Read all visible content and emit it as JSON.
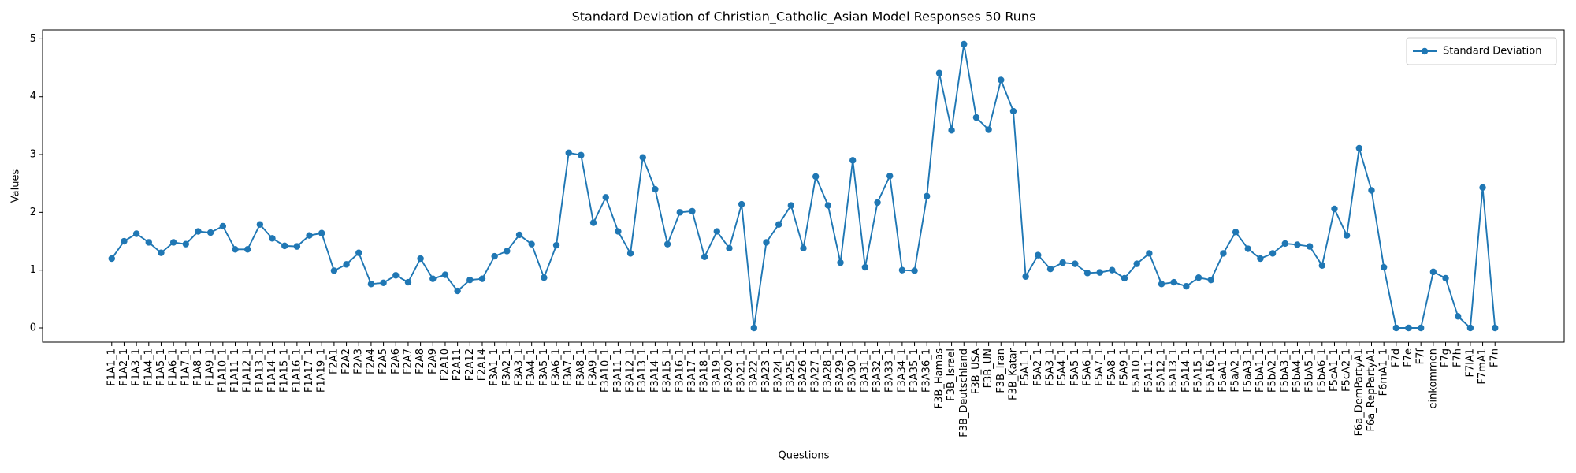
{
  "chart_data": {
    "type": "line",
    "title": "Standard Deviation of Christian_Catholic_Asian Model Responses 50 Runs",
    "x_label": "Questions",
    "y_label": "Values",
    "categories": [
      "F1A1_1",
      "F1A2_1",
      "F1A3_1",
      "F1A4_1",
      "F1A5_1",
      "F1A6_1",
      "F1A7_1",
      "F1A8_1",
      "F1A9_1",
      "F1A10_1",
      "F1A11_1",
      "F1A12_1",
      "F1A13_1",
      "F1A14_1",
      "F1A15_1",
      "F1A16_1",
      "F1A17_1",
      "F1A19_1",
      "F2A1",
      "F2A2",
      "F2A3",
      "F2A4",
      "F2A5",
      "F2A6",
      "F2A7",
      "F2A8",
      "F2A9",
      "F2A10",
      "F2A11",
      "F2A12",
      "F2A14",
      "F3A1_1",
      "F3A2_1",
      "F3A3_1",
      "F3A4_1",
      "F3A5_1",
      "F3A6_1",
      "F3A7_1",
      "F3A8_1",
      "F3A9_1",
      "F3A10_1",
      "F3A11_1",
      "F3A12_1",
      "F3A13_1",
      "F3A14_1",
      "F3A15_1",
      "F3A16_1",
      "F3A17_1",
      "F3A18_1",
      "F3A19_1",
      "F3A20_1",
      "F3A21_1",
      "F3A22_1",
      "F3A23_1",
      "F3A24_1",
      "F3A25_1",
      "F3A26_1",
      "F3A27_1",
      "F3A28_1",
      "F3A29_1",
      "F3A30_1",
      "F3A31_1",
      "F3A32_1",
      "F3A33_1",
      "F3A34_1",
      "F3A35_1",
      "F3A36_1",
      "F3B_Hamas",
      "F3B_Israel",
      "F3B_Deutschland",
      "F3B_USA",
      "F3B_UN",
      "F3B_Iran",
      "F3B_Katar",
      "F5A1_1",
      "F5A2_1",
      "F5A3_1",
      "F5A4_1",
      "F5A5_1",
      "F5A6_1",
      "F5A7_1",
      "F5A8_1",
      "F5A9_1",
      "F5A10_1",
      "F5A11_1",
      "F5A12_1",
      "F5A13_1",
      "F5A14_1",
      "F5A15_1",
      "F5A16_1",
      "F5aA1_1",
      "F5aA2_1",
      "F5aA3_1",
      "F5bA1_1",
      "F5bA2_1",
      "F5bA3_1",
      "F5bA4_1",
      "F5bA5_1",
      "F5bA6_1",
      "F5cA1_1",
      "F5cA2_1",
      "F6a_DemPartyA1",
      "F6a_RepPartyA1",
      "F6mA1_1",
      "F7d",
      "F7e",
      "F7f",
      "einkommen",
      "F7g",
      "F7h",
      "F7lA1",
      "F7mA1",
      "F7n"
    ],
    "series": [
      {
        "name": "Standard Deviation",
        "color": "#1f77b4",
        "values": [
          1.2,
          1.5,
          1.63,
          1.48,
          1.3,
          1.48,
          1.45,
          1.67,
          1.65,
          1.76,
          1.36,
          1.36,
          1.79,
          1.55,
          1.42,
          1.41,
          1.6,
          1.64,
          0.99,
          1.1,
          1.3,
          0.76,
          0.78,
          0.91,
          0.79,
          1.2,
          0.85,
          0.92,
          0.64,
          0.83,
          0.85,
          1.24,
          1.33,
          1.61,
          1.45,
          0.87,
          1.43,
          3.03,
          2.99,
          1.82,
          2.26,
          1.67,
          1.29,
          2.95,
          2.4,
          1.45,
          2.0,
          2.02,
          1.23,
          1.67,
          1.38,
          2.14,
          0,
          1.48,
          1.79,
          2.12,
          1.38,
          2.62,
          2.12,
          1.13,
          2.9,
          1.05,
          2.17,
          2.63,
          1.0,
          0.99,
          2.28,
          4.41,
          3.42,
          4.91,
          3.64,
          3.43,
          4.29,
          3.75,
          0.89,
          1.26,
          1.02,
          1.13,
          1.11,
          0.95,
          0.96,
          1.0,
          0.86,
          1.11,
          1.29,
          0.76,
          0.79,
          0.72,
          0.87,
          0.83,
          1.29,
          1.66,
          1.37,
          1.2,
          1.29,
          1.46,
          1.44,
          1.41,
          1.08,
          2.06,
          1.6,
          3.11,
          2.38,
          1.05,
          0,
          0,
          0,
          0.97,
          0.86,
          0.2,
          0,
          2.43,
          0
        ]
      }
    ],
    "ylim": [
      -0.2455,
      5.1555
    ],
    "yticks": [
      0,
      1,
      2,
      3,
      4,
      5
    ],
    "legend": "upper right",
    "grid": false
  }
}
